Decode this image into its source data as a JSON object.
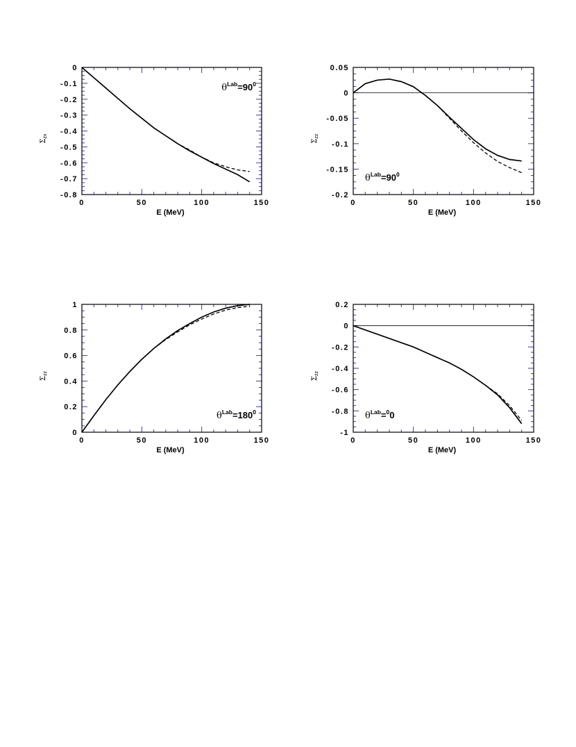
{
  "colors": {
    "frame": "#000000",
    "ticks": "#3a3ab8",
    "curve": "#000000",
    "zero_line": "#000000"
  },
  "chart_data": [
    {
      "type": "line",
      "panel": "top-left",
      "xlabel": "E  (MeV)",
      "ylabel_symbol": "Σ",
      "ylabel_subscript": "zx",
      "xlim": [
        0,
        150
      ],
      "ylim": [
        -0.8,
        0
      ],
      "x_ticks": [
        0,
        50,
        100,
        150
      ],
      "x_tick_labels": [
        "0",
        "50",
        "100",
        "150"
      ],
      "y_ticks": [
        0,
        -0.1,
        -0.2,
        -0.3,
        -0.4,
        -0.5,
        -0.6,
        -0.7,
        -0.8
      ],
      "y_tick_labels": [
        "0",
        "-0.1",
        "-0.2",
        "-0.3",
        "-0.4",
        "-0.5",
        "-0.6",
        "-0.7",
        "-0.8"
      ],
      "zero_line": false,
      "annotation": {
        "symbol": "θ",
        "superscript": "Lab",
        "value": "=90",
        "degree": "0"
      },
      "annotation_anchor": "top-right",
      "series": [
        {
          "style": "solid",
          "x": [
            0,
            10,
            20,
            30,
            40,
            50,
            60,
            70,
            80,
            90,
            100,
            110,
            120,
            130,
            140
          ],
          "y": [
            0,
            -0.065,
            -0.13,
            -0.195,
            -0.26,
            -0.32,
            -0.38,
            -0.43,
            -0.48,
            -0.525,
            -0.565,
            -0.605,
            -0.64,
            -0.675,
            -0.72
          ]
        },
        {
          "style": "dashed",
          "x": [
            75,
            80,
            90,
            100,
            110,
            120,
            130,
            140
          ],
          "y": [
            -0.455,
            -0.48,
            -0.52,
            -0.565,
            -0.6,
            -0.625,
            -0.645,
            -0.655
          ]
        }
      ]
    },
    {
      "type": "line",
      "panel": "top-right",
      "xlabel": "E  (MeV)",
      "ylabel_symbol": "Σ",
      "ylabel_subscript": "zz",
      "xlim": [
        0,
        150
      ],
      "ylim": [
        -0.2,
        0.05
      ],
      "x_ticks": [
        0,
        50,
        100,
        150
      ],
      "x_tick_labels": [
        "0",
        "50",
        "100",
        "150"
      ],
      "y_ticks": [
        0.05,
        0,
        -0.05,
        -0.1,
        -0.15,
        -0.2
      ],
      "y_tick_labels": [
        "0.05",
        "0",
        "-0.05",
        "-0.1",
        "-0.15",
        "-0.2"
      ],
      "zero_line": true,
      "annotation": {
        "symbol": "θ",
        "superscript": "Lab",
        "value": "=90",
        "degree": "0"
      },
      "annotation_anchor": "bottom-left",
      "series": [
        {
          "style": "solid",
          "x": [
            0,
            10,
            20,
            30,
            40,
            50,
            60,
            70,
            80,
            90,
            100,
            110,
            120,
            130,
            140
          ],
          "y": [
            0,
            0.018,
            0.025,
            0.027,
            0.022,
            0.012,
            -0.005,
            -0.025,
            -0.048,
            -0.07,
            -0.092,
            -0.11,
            -0.123,
            -0.131,
            -0.134
          ]
        },
        {
          "style": "dashed",
          "x": [
            70,
            80,
            90,
            100,
            110,
            120,
            130,
            140
          ],
          "y": [
            -0.025,
            -0.05,
            -0.075,
            -0.098,
            -0.118,
            -0.135,
            -0.147,
            -0.157
          ]
        }
      ]
    },
    {
      "type": "line",
      "panel": "bottom-left",
      "xlabel": "E  (MeV)",
      "ylabel_symbol": "Σ",
      "ylabel_subscript": "zz",
      "xlim": [
        0,
        150
      ],
      "ylim": [
        0,
        1
      ],
      "x_ticks": [
        0,
        50,
        100,
        150
      ],
      "x_tick_labels": [
        "0",
        "50",
        "100",
        "150"
      ],
      "y_ticks": [
        0,
        0.2,
        0.4,
        0.6,
        0.8,
        1
      ],
      "y_tick_labels": [
        "0",
        "0.2",
        "0.4",
        "0.6",
        "0.8",
        "1"
      ],
      "zero_line": false,
      "annotation": {
        "symbol": "θ",
        "superscript": "Lab",
        "value": "=180",
        "degree": "0"
      },
      "annotation_anchor": "bottom-right",
      "series": [
        {
          "style": "solid",
          "x": [
            0,
            10,
            20,
            30,
            40,
            50,
            60,
            70,
            80,
            90,
            100,
            110,
            120,
            130,
            140
          ],
          "y": [
            0,
            0.13,
            0.255,
            0.37,
            0.475,
            0.57,
            0.655,
            0.73,
            0.795,
            0.85,
            0.9,
            0.94,
            0.97,
            0.99,
            1.0
          ]
        },
        {
          "style": "dashed",
          "x": [
            60,
            70,
            80,
            90,
            100,
            110,
            120,
            130,
            140
          ],
          "y": [
            0.655,
            0.725,
            0.785,
            0.84,
            0.885,
            0.925,
            0.955,
            0.975,
            0.985
          ]
        }
      ]
    },
    {
      "type": "line",
      "panel": "bottom-right",
      "xlabel": "E  (MeV)",
      "ylabel_symbol": "Σ",
      "ylabel_subscript": "zz",
      "xlim": [
        0,
        150
      ],
      "ylim": [
        -1,
        0.2
      ],
      "x_ticks": [
        0,
        50,
        100,
        150
      ],
      "x_tick_labels": [
        "0",
        "50",
        "100",
        "150"
      ],
      "y_ticks": [
        0.2,
        0,
        -0.2,
        -0.4,
        -0.6,
        -0.8,
        -1
      ],
      "y_tick_labels": [
        "0.2",
        "0",
        "-0.2",
        "-0.4",
        "-0.6",
        "-0.8",
        "-1"
      ],
      "zero_line": true,
      "annotation": {
        "symbol": "θ",
        "superscript": "Lab",
        "value": "=",
        "degree": "0",
        "value_after": "0"
      },
      "annotation_anchor": "bottom-left",
      "series": [
        {
          "style": "solid",
          "x": [
            0,
            10,
            20,
            30,
            40,
            50,
            60,
            70,
            80,
            90,
            100,
            110,
            120,
            130,
            140
          ],
          "y": [
            0,
            -0.04,
            -0.08,
            -0.12,
            -0.16,
            -0.2,
            -0.25,
            -0.3,
            -0.35,
            -0.41,
            -0.48,
            -0.56,
            -0.65,
            -0.77,
            -0.92
          ]
        },
        {
          "style": "dashed",
          "x": [
            110,
            120,
            130,
            140
          ],
          "y": [
            -0.56,
            -0.64,
            -0.75,
            -0.89
          ]
        }
      ]
    }
  ]
}
